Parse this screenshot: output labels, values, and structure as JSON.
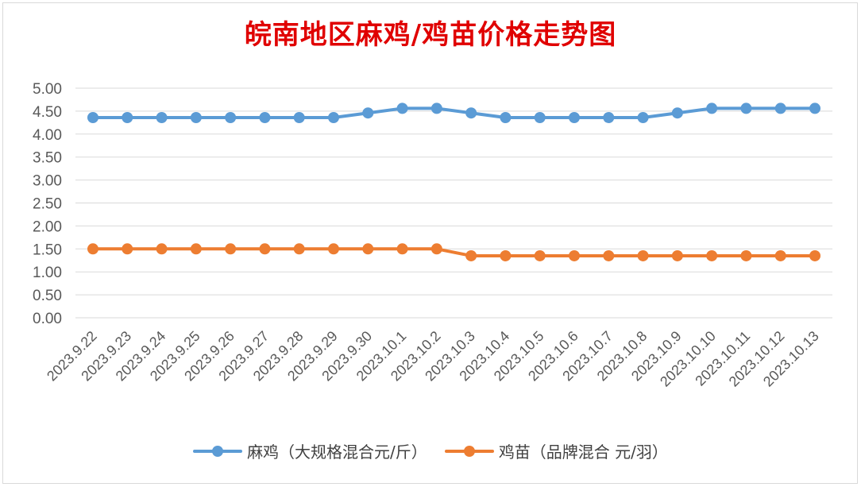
{
  "chart_data": {
    "type": "line",
    "title": "皖南地区麻鸡/鸡苗价格走势图",
    "categories": [
      "2023.9.22",
      "2023.9.23",
      "2023.9.24",
      "2023.9.25",
      "2023.9.26",
      "2023.9.27",
      "2023.9.28",
      "2023.9.29",
      "2023.9.30",
      "2023.10.1",
      "2023.10.2",
      "2023.10.3",
      "2023.10.4",
      "2023.10.5",
      "2023.10.6",
      "2023.10.7",
      "2023.10.8",
      "2023.10.9",
      "2023.10.10",
      "2023.10.11",
      "2023.10.12",
      "2023.10.13"
    ],
    "series": [
      {
        "name": "麻鸡（大规格混合元/斤）",
        "color": "#5b9bd5",
        "values": [
          4.36,
          4.36,
          4.36,
          4.36,
          4.36,
          4.36,
          4.36,
          4.36,
          4.46,
          4.56,
          4.56,
          4.46,
          4.36,
          4.36,
          4.36,
          4.36,
          4.36,
          4.46,
          4.56,
          4.56,
          4.56,
          4.56
        ]
      },
      {
        "name": "鸡苗（品牌混合 元/羽）",
        "color": "#ed7d31",
        "values": [
          1.5,
          1.5,
          1.5,
          1.5,
          1.5,
          1.5,
          1.5,
          1.5,
          1.5,
          1.5,
          1.5,
          1.35,
          1.35,
          1.35,
          1.35,
          1.35,
          1.35,
          1.35,
          1.35,
          1.35,
          1.35,
          1.35
        ]
      }
    ],
    "ylim": [
      0,
      5
    ],
    "ytick_labels": [
      "0.00",
      "0.50",
      "1.00",
      "1.50",
      "2.00",
      "2.50",
      "3.00",
      "3.50",
      "4.00",
      "4.50",
      "5.00"
    ],
    "xlabel": "",
    "ylabel": "",
    "grid": true,
    "legend_position": "bottom"
  }
}
